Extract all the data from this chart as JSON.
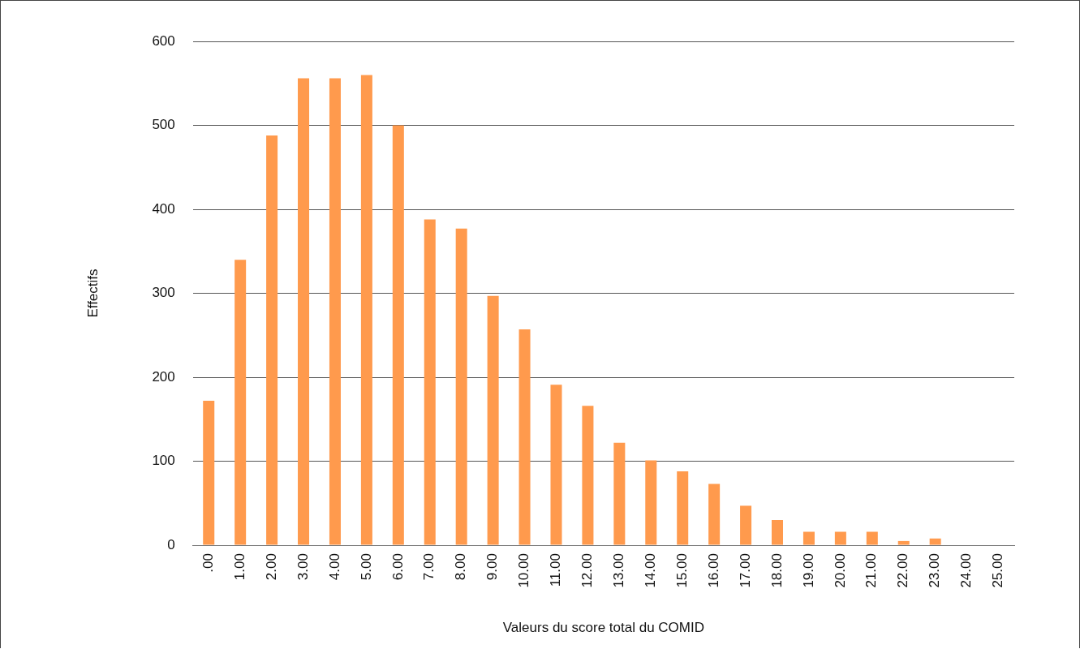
{
  "chart_data": {
    "type": "bar",
    "xlabel": "Valeurs du score total du COMID",
    "ylabel": "Effectifs",
    "categories": [
      ".00",
      "1.00",
      "2.00",
      "3.00",
      "4.00",
      "5.00",
      "6.00",
      "7.00",
      "8.00",
      "9.00",
      "10.00",
      "11.00",
      "12.00",
      "13.00",
      "14.00",
      "15.00",
      "16.00",
      "17.00",
      "18.00",
      "19.00",
      "20.00",
      "21.00",
      "22.00",
      "23.00",
      "24.00",
      "25.00"
    ],
    "values": [
      172,
      340,
      488,
      556,
      556,
      560,
      500,
      388,
      377,
      297,
      257,
      191,
      166,
      122,
      101,
      88,
      73,
      47,
      30,
      16,
      16,
      16,
      5,
      8,
      0,
      0
    ],
    "color": "#ff9a4d",
    "ylim": [
      0,
      600
    ],
    "yticks": [
      0,
      100,
      200,
      300,
      400,
      500,
      600
    ],
    "grid": "y",
    "legend": false
  }
}
